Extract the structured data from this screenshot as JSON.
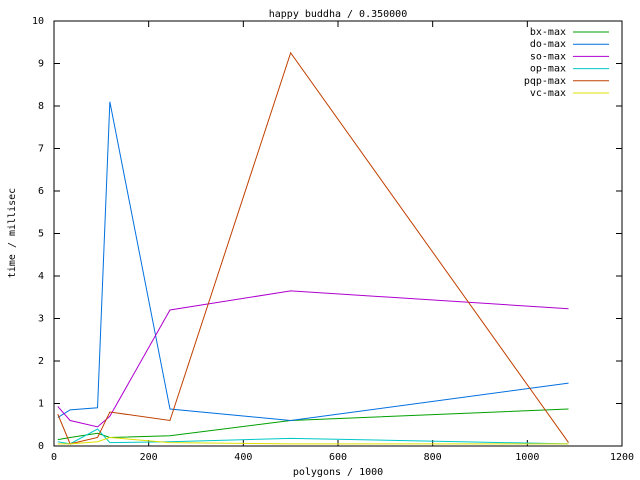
{
  "chart_data": {
    "type": "line",
    "title": "happy buddha / 0.350000",
    "x_label": "polygons / 1000",
    "y_label": "time / millisec",
    "x": [
      8,
      34,
      92,
      118,
      245,
      500,
      1087
    ],
    "series": [
      {
        "name": "bx-max",
        "color": "#00a000",
        "values": [
          0.15,
          0.2,
          0.3,
          0.2,
          0.24,
          0.6,
          0.87
        ]
      },
      {
        "name": "do-max",
        "color": "#0070e0",
        "values": [
          0.67,
          0.85,
          0.9,
          8.1,
          0.87,
          0.6,
          1.48
        ]
      },
      {
        "name": "so-max",
        "color": "#b000d0",
        "values": [
          0.93,
          0.6,
          0.45,
          0.7,
          3.2,
          3.65,
          3.23
        ]
      },
      {
        "name": "op-max",
        "color": "#00c8c8",
        "values": [
          0.1,
          0.05,
          0.4,
          0.08,
          0.1,
          0.18,
          0.05
        ]
      },
      {
        "name": "pqp-max",
        "color": "#c04000",
        "values": [
          0.75,
          0.05,
          0.2,
          0.8,
          0.6,
          9.25,
          0.08
        ]
      },
      {
        "name": "vc-max",
        "color": "#e0e000",
        "values": [
          0.05,
          0.05,
          0.1,
          0.2,
          0.08,
          0.05,
          0.05
        ]
      }
    ],
    "xlim": [
      0,
      1200
    ],
    "xticks": [
      0,
      200,
      400,
      600,
      800,
      1000,
      1200
    ],
    "ylim": [
      0,
      10
    ],
    "yticks": [
      0,
      1,
      2,
      3,
      4,
      5,
      6,
      7,
      8,
      9,
      10
    ],
    "legend": "top-right"
  }
}
